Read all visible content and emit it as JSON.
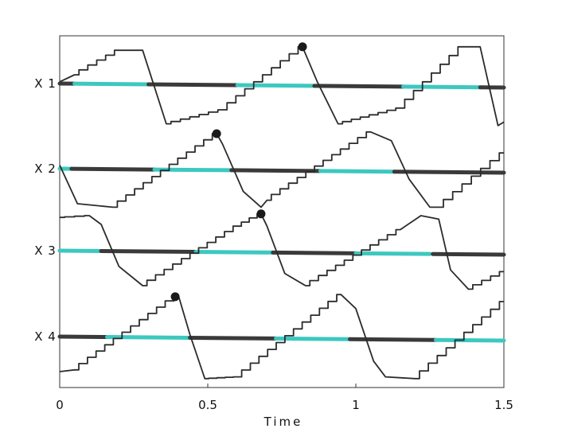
{
  "chart_data": {
    "type": "line",
    "xlabel": "Time",
    "xlim": [
      0,
      1.5
    ],
    "x_ticks": [
      {
        "value": 0,
        "label": "0"
      },
      {
        "value": 0.5,
        "label": "0.5"
      },
      {
        "value": 1,
        "label": "1"
      },
      {
        "value": 1.5,
        "label": "1.5"
      }
    ],
    "grid": false,
    "legend": "none",
    "colors": {
      "trace": "#2b2b2b",
      "baseline_dark": "#3a3a3a",
      "baseline_highlight": "#3cc8bf",
      "frame": "#333333"
    },
    "channels": [
      {
        "name": "X 1",
        "baseline_segments": [
          {
            "x0": 0.0,
            "x1": 0.05,
            "color": "dark"
          },
          {
            "x0": 0.05,
            "x1": 0.3,
            "color": "highlight"
          },
          {
            "x0": 0.3,
            "x1": 0.6,
            "color": "dark"
          },
          {
            "x0": 0.6,
            "x1": 0.86,
            "color": "highlight"
          },
          {
            "x0": 0.86,
            "x1": 1.16,
            "color": "dark"
          },
          {
            "x0": 1.16,
            "x1": 1.42,
            "color": "highlight"
          },
          {
            "x0": 1.42,
            "x1": 1.5,
            "color": "dark"
          }
        ],
        "trace": [
          [
            0,
            0.05
          ],
          [
            0.05,
            0.25
          ],
          [
            0.2,
            0.95
          ],
          [
            0.28,
            0.95
          ],
          [
            0.36,
            -1.15
          ],
          [
            0.55,
            -0.75
          ],
          [
            0.82,
            1.05
          ],
          [
            0.87,
            0.05
          ],
          [
            0.94,
            -1.15
          ],
          [
            1.15,
            -0.7
          ],
          [
            1.36,
            1.05
          ],
          [
            1.42,
            1.05
          ],
          [
            1.48,
            -1.2
          ],
          [
            1.5,
            -1.1
          ]
        ],
        "marker": {
          "x": 0.82
        }
      },
      {
        "name": "X 2",
        "baseline_segments": [
          {
            "x0": 0.0,
            "x1": 0.04,
            "color": "highlight"
          },
          {
            "x0": 0.04,
            "x1": 0.32,
            "color": "dark"
          },
          {
            "x0": 0.32,
            "x1": 0.58,
            "color": "highlight"
          },
          {
            "x0": 0.58,
            "x1": 0.88,
            "color": "dark"
          },
          {
            "x0": 0.88,
            "x1": 1.13,
            "color": "highlight"
          },
          {
            "x0": 1.13,
            "x1": 1.5,
            "color": "dark"
          }
        ],
        "trace": [
          [
            0,
            0.1
          ],
          [
            0.06,
            -1.0
          ],
          [
            0.18,
            -1.1
          ],
          [
            0.53,
            1.0
          ],
          [
            0.55,
            0.7
          ],
          [
            0.62,
            -0.65
          ],
          [
            0.68,
            -1.1
          ],
          [
            0.7,
            -0.9
          ],
          [
            1.05,
            1.05
          ],
          [
            1.12,
            0.8
          ],
          [
            1.18,
            -0.3
          ],
          [
            1.25,
            -1.1
          ],
          [
            1.28,
            -1.1
          ],
          [
            1.5,
            0.45
          ]
        ],
        "marker": {
          "x": 0.53
        }
      },
      {
        "name": "X 3",
        "baseline_segments": [
          {
            "x0": 0.0,
            "x1": 0.14,
            "color": "highlight"
          },
          {
            "x0": 0.14,
            "x1": 0.46,
            "color": "dark"
          },
          {
            "x0": 0.46,
            "x1": 0.72,
            "color": "highlight"
          },
          {
            "x0": 0.72,
            "x1": 1.0,
            "color": "dark"
          },
          {
            "x0": 1.0,
            "x1": 1.25,
            "color": "highlight"
          },
          {
            "x0": 1.26,
            "x1": 1.5,
            "color": "dark"
          }
        ],
        "trace": [
          [
            0,
            0.95
          ],
          [
            0.1,
            1.0
          ],
          [
            0.14,
            0.75
          ],
          [
            0.2,
            -0.45
          ],
          [
            0.28,
            -1.0
          ],
          [
            0.6,
            0.7
          ],
          [
            0.68,
            1.05
          ],
          [
            0.7,
            0.7
          ],
          [
            0.76,
            -0.65
          ],
          [
            0.83,
            -1.0
          ],
          [
            1.15,
            0.6
          ],
          [
            1.22,
            1.0
          ],
          [
            1.28,
            0.9
          ],
          [
            1.32,
            -0.55
          ],
          [
            1.38,
            -1.1
          ],
          [
            1.5,
            -0.6
          ]
        ],
        "marker": {
          "x": 0.68
        }
      },
      {
        "name": "X 4",
        "baseline_segments": [
          {
            "x0": 0.0,
            "x1": 0.16,
            "color": "dark"
          },
          {
            "x0": 0.16,
            "x1": 0.44,
            "color": "highlight"
          },
          {
            "x0": 0.44,
            "x1": 0.73,
            "color": "dark"
          },
          {
            "x0": 0.73,
            "x1": 0.98,
            "color": "highlight"
          },
          {
            "x0": 0.98,
            "x1": 1.27,
            "color": "dark"
          },
          {
            "x0": 1.27,
            "x1": 1.5,
            "color": "highlight"
          }
        ],
        "trace": [
          [
            0,
            -1.0
          ],
          [
            0.05,
            -0.95
          ],
          [
            0.4,
            1.2
          ],
          [
            0.44,
            0.05
          ],
          [
            0.49,
            -1.2
          ],
          [
            0.6,
            -1.15
          ],
          [
            0.95,
            1.2
          ],
          [
            1.0,
            0.8
          ],
          [
            1.06,
            -0.7
          ],
          [
            1.1,
            -1.15
          ],
          [
            1.2,
            -1.2
          ],
          [
            1.5,
            1.0
          ]
        ],
        "marker": {
          "x": 0.39
        }
      }
    ]
  }
}
